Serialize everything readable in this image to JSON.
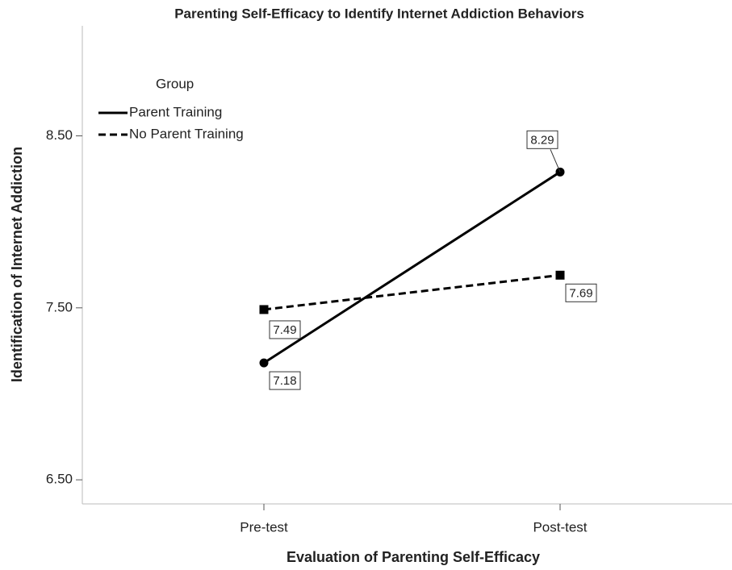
{
  "chart_data": {
    "type": "line",
    "title": "Parenting Self-Efficacy to Identify Internet Addiction Behaviors",
    "x_label": "Evaluation of Parenting Self-Efficacy",
    "y_label": "Identification of Internet Addiction",
    "legend_title": "Group",
    "categories": [
      "Pre-test",
      "Post-test"
    ],
    "series": [
      {
        "name": "Parent Training",
        "color": "#000000",
        "dash": "solid",
        "marker": "circle",
        "values": [
          7.18,
          8.29
        ]
      },
      {
        "name": "No Parent Training",
        "color": "#000000",
        "dash": "dashed",
        "marker": "square",
        "values": [
          7.49,
          7.69
        ]
      }
    ],
    "ylim": [
      6.36,
      9.14
    ],
    "yticks": [
      {
        "value": 6.5,
        "label": "6.50"
      },
      {
        "value": 7.5,
        "label": "7.50"
      },
      {
        "value": 8.5,
        "label": "8.50"
      }
    ],
    "grid": false,
    "legend": "upper left"
  }
}
